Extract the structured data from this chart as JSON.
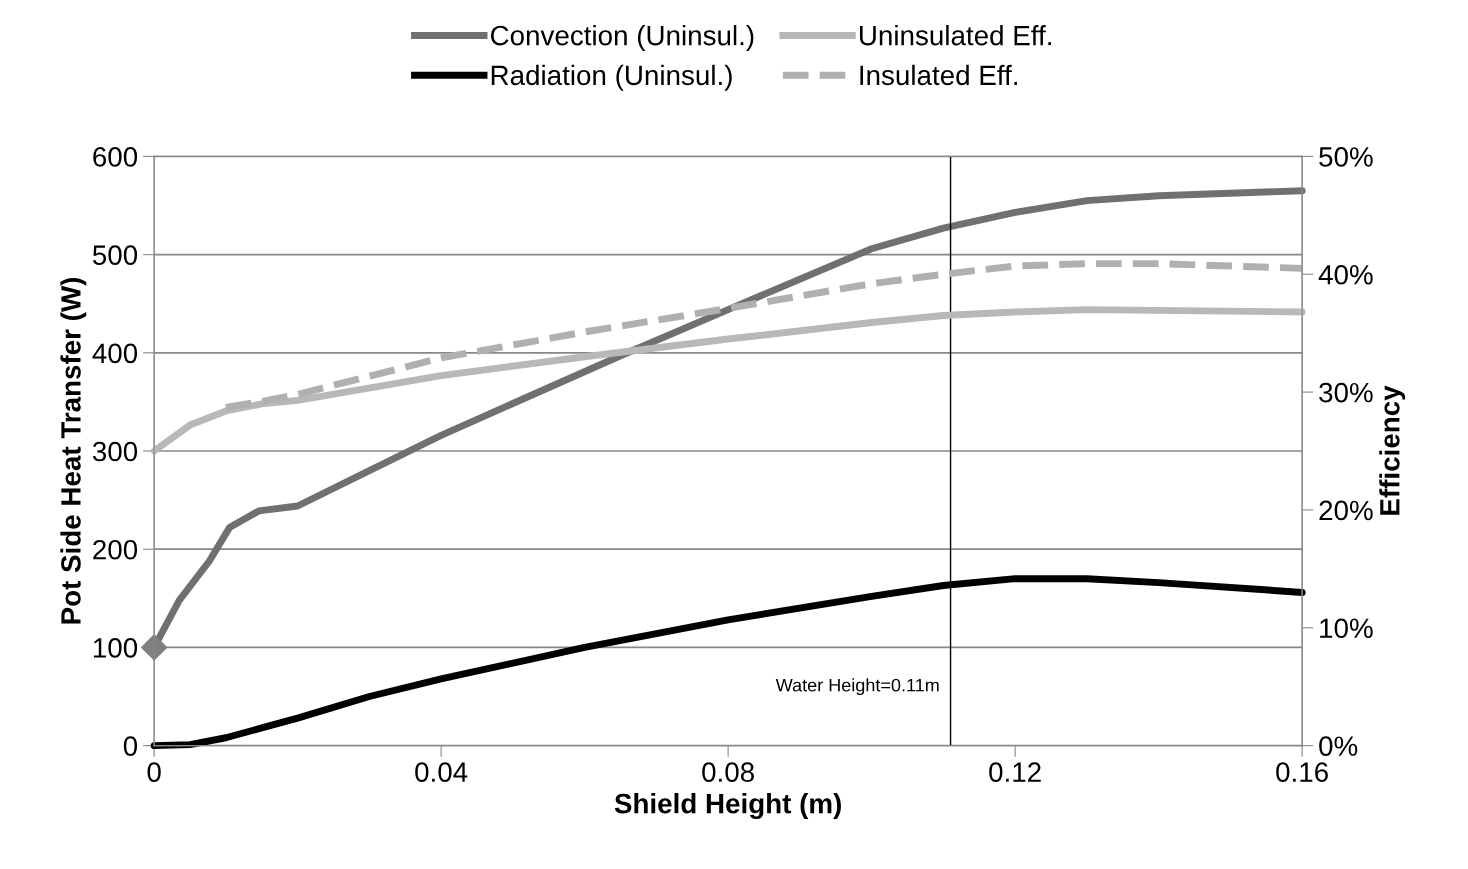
{
  "chart_data": {
    "type": "line",
    "xlabel": "Shield Height (m)",
    "ylabel": "Pot Side Heat Transfer (W)",
    "y2label": "Efficiency",
    "xlim": [
      0,
      0.16
    ],
    "xticks": [
      0,
      0.04,
      0.08,
      0.12,
      0.16
    ],
    "ylim": [
      0,
      600
    ],
    "yticks": [
      0,
      100,
      200,
      300,
      400,
      500,
      600
    ],
    "y2lim": [
      0,
      50
    ],
    "y2ticks": [
      {
        "value": 0,
        "label": "0%"
      },
      {
        "value": 10,
        "label": "10%"
      },
      {
        "value": 20,
        "label": "20%"
      },
      {
        "value": 30,
        "label": "30%"
      },
      {
        "value": 40,
        "label": "40%"
      },
      {
        "value": 50,
        "label": "50%"
      }
    ],
    "grid": "y",
    "legend": "top",
    "marker": "none",
    "series": [
      {
        "name": "Convection (Uninsul.)",
        "color": "#707070",
        "x": [
          0,
          0.0035,
          0.0077,
          0.0105,
          0.0146,
          0.02,
          0.03,
          0.04,
          0.065,
          0.08,
          0.1,
          0.11,
          0.12,
          0.13,
          0.14,
          0.16
        ],
        "values": [
          100,
          148,
          188,
          222,
          239,
          244,
          280,
          316,
          397,
          444,
          506,
          527,
          543,
          555,
          560,
          565
        ]
      },
      {
        "name": "Radiation (Uninsul.)",
        "color": "#000000",
        "x": [
          0,
          0.005,
          0.01,
          0.015,
          0.02,
          0.03,
          0.04,
          0.06,
          0.08,
          0.1,
          0.11,
          0.12,
          0.13,
          0.14,
          0.16
        ],
        "values": [
          0,
          1,
          8,
          18,
          28,
          50,
          68,
          100,
          128,
          152,
          163,
          170,
          170,
          166,
          156
        ]
      },
      {
        "name": "Uninsulated Eff.",
        "color": "#b8b8b8",
        "axis": "y2",
        "x": [
          0,
          0.005,
          0.01,
          0.015,
          0.02,
          0.04,
          0.06,
          0.08,
          0.1,
          0.11,
          0.12,
          0.13,
          0.16
        ],
        "values": [
          25.0,
          27.2,
          28.4,
          29.0,
          29.3,
          31.4,
          33.0,
          34.5,
          35.9,
          36.5,
          36.8,
          37.0,
          36.8
        ]
      },
      {
        "name": "Insulated Eff.",
        "color": "#b0b0b0",
        "axis": "y2",
        "line_style": "dashed",
        "x": [
          0.01,
          0.015,
          0.02,
          0.04,
          0.06,
          0.08,
          0.1,
          0.11,
          0.12,
          0.13,
          0.14,
          0.16
        ],
        "values": [
          28.7,
          29.2,
          29.8,
          32.9,
          35.1,
          37.1,
          39.2,
          40.0,
          40.7,
          40.9,
          40.9,
          40.5
        ]
      },
      {
        "type": "scatter",
        "color": "#808080",
        "marker": "diamond",
        "x": [
          0
        ],
        "values": [
          100
        ]
      }
    ],
    "ref_lines": [
      {
        "axis": "x",
        "value": 0.111,
        "label": "Water Height=0.11m",
        "color": "#000000"
      }
    ]
  }
}
